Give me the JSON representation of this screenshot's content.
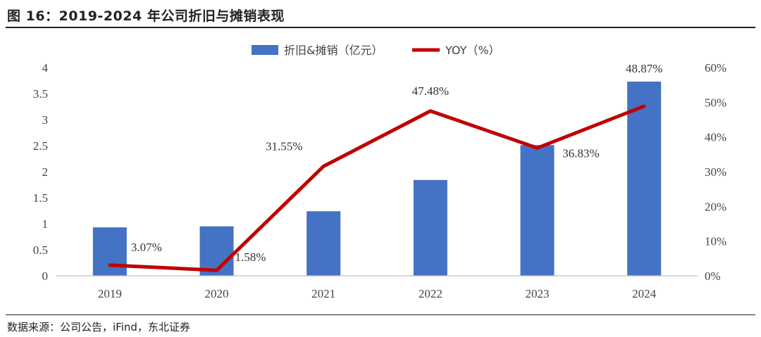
{
  "figure": {
    "title": "图 16：2019-2024 年公司折旧与摊销表现",
    "source": "数据来源：公司公告，iFind，东北证券"
  },
  "colors": {
    "bar": "#4472C4",
    "line": "#C00000",
    "axis": "#BFBFBF"
  },
  "chart_data": {
    "type": "bar",
    "categories": [
      "2019",
      "2020",
      "2021",
      "2022",
      "2023",
      "2024"
    ],
    "series": [
      {
        "name": "折旧&摊销（亿元）",
        "type": "bar",
        "axis": "left",
        "values": [
          0.93,
          0.95,
          1.24,
          1.84,
          2.51,
          3.73
        ]
      },
      {
        "name": "YOY（%）",
        "type": "line",
        "axis": "right",
        "values": [
          3.07,
          1.58,
          31.55,
          47.48,
          36.83,
          48.87
        ],
        "labels": [
          "3.07%",
          "1.58%",
          "31.55%",
          "47.48%",
          "36.83%",
          "48.87%"
        ]
      }
    ],
    "y_left": {
      "ylim": [
        0,
        4
      ],
      "ticks": [
        "0",
        "0.5",
        "1",
        "1.5",
        "2",
        "2.5",
        "3",
        "3.5",
        "4"
      ]
    },
    "y_right": {
      "ylim": [
        0,
        60
      ],
      "ticks": [
        "0%",
        "10%",
        "20%",
        "30%",
        "40%",
        "50%",
        "60%"
      ]
    },
    "legend": "top-center",
    "grid": false
  }
}
